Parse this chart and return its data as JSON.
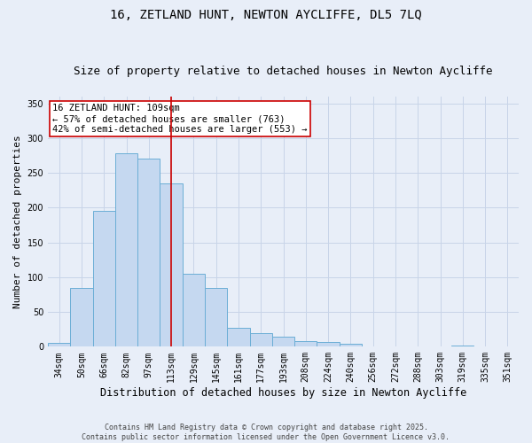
{
  "title": "16, ZETLAND HUNT, NEWTON AYCLIFFE, DL5 7LQ",
  "subtitle": "Size of property relative to detached houses in Newton Aycliffe",
  "xlabel": "Distribution of detached houses by size in Newton Aycliffe",
  "ylabel": "Number of detached properties",
  "categories": [
    "34sqm",
    "50sqm",
    "66sqm",
    "82sqm",
    "97sqm",
    "113sqm",
    "129sqm",
    "145sqm",
    "161sqm",
    "177sqm",
    "193sqm",
    "208sqm",
    "224sqm",
    "240sqm",
    "256sqm",
    "272sqm",
    "288sqm",
    "303sqm",
    "319sqm",
    "335sqm",
    "351sqm"
  ],
  "values": [
    6,
    84,
    196,
    278,
    271,
    235,
    105,
    84,
    27,
    19,
    14,
    8,
    7,
    4,
    1,
    0,
    1,
    0,
    2,
    1,
    1
  ],
  "bar_color": "#c5d8f0",
  "bar_edge_color": "#6baed6",
  "vline_x": 5,
  "vline_color": "#cc0000",
  "annotation_text": "16 ZETLAND HUNT: 109sqm\n← 57% of detached houses are smaller (763)\n42% of semi-detached houses are larger (553) →",
  "annotation_box_color": "#ffffff",
  "annotation_box_edge": "#cc0000",
  "ylim": [
    0,
    360
  ],
  "yticks": [
    0,
    50,
    100,
    150,
    200,
    250,
    300,
    350
  ],
  "grid_color": "#c8d4e8",
  "background_color": "#e8eef8",
  "footnote": "Contains HM Land Registry data © Crown copyright and database right 2025.\nContains public sector information licensed under the Open Government Licence v3.0.",
  "title_fontsize": 10,
  "subtitle_fontsize": 9,
  "xlabel_fontsize": 8.5,
  "ylabel_fontsize": 8,
  "tick_fontsize": 7,
  "annot_fontsize": 7.5,
  "footnote_fontsize": 6
}
